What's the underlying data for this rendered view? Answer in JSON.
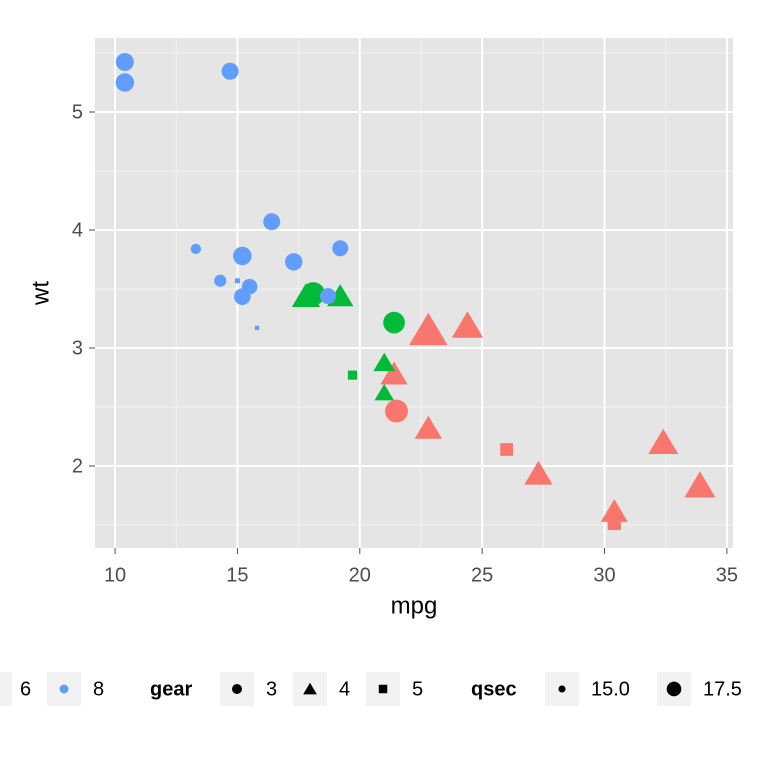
{
  "chart_data": {
    "type": "scatter",
    "x_label": "mpg",
    "y_label": "wt",
    "xlim": [
      9.18,
      35.25
    ],
    "ylim": [
      1.305,
      5.627
    ],
    "xticks": [
      10,
      15,
      20,
      25,
      30,
      35
    ],
    "yticks": [
      2,
      3,
      4,
      5
    ],
    "xminor": [
      12.5,
      17.5,
      22.5,
      27.5,
      32.5
    ],
    "yminor": [
      1.5,
      2.5,
      3.5,
      4.5,
      5.5
    ],
    "grid": true,
    "legend_position": "bottom",
    "series": [
      {
        "color": "#F8766D",
        "x": [
          22.8,
          24.4,
          22.8,
          32.4,
          30.4,
          33.9,
          21.5,
          27.3,
          26.0,
          30.4,
          21.4
        ],
        "values": [
          2.32,
          3.19,
          3.15,
          2.2,
          1.615,
          1.835,
          2.465,
          1.935,
          2.14,
          1.513,
          2.78
        ],
        "gear": [
          4,
          4,
          4,
          4,
          4,
          4,
          3,
          4,
          5,
          5,
          4
        ],
        "qsec": [
          18.61,
          20.0,
          22.9,
          19.47,
          18.52,
          19.9,
          20.01,
          18.9,
          16.7,
          16.9,
          18.6
        ]
      },
      {
        "name": "6",
        "color": "#00BA38",
        "x": [
          21.0,
          21.0,
          21.4,
          18.1,
          19.2,
          17.8,
          19.7
        ],
        "values": [
          2.62,
          2.875,
          3.215,
          3.46,
          3.44,
          3.44,
          2.77
        ],
        "gear": [
          4,
          4,
          3,
          3,
          4,
          4,
          5
        ],
        "qsec": [
          16.46,
          17.02,
          19.44,
          20.22,
          18.3,
          18.9,
          15.5
        ]
      },
      {
        "name": "8",
        "color": "#619CFF",
        "x": [
          18.7,
          14.3,
          16.4,
          17.3,
          15.2,
          10.4,
          10.4,
          14.7,
          15.5,
          15.2,
          13.3,
          19.2,
          15.8,
          15.0
        ],
        "values": [
          3.44,
          3.57,
          4.07,
          3.73,
          3.78,
          5.25,
          5.424,
          5.345,
          3.52,
          3.435,
          3.84,
          3.845,
          3.17,
          3.57
        ],
        "gear": [
          3,
          3,
          3,
          3,
          3,
          3,
          3,
          3,
          3,
          3,
          3,
          3,
          5,
          5
        ],
        "qsec": [
          17.02,
          15.84,
          17.4,
          17.6,
          18.0,
          17.98,
          17.82,
          17.42,
          16.87,
          17.3,
          15.41,
          17.05,
          14.5,
          14.6
        ]
      }
    ],
    "shape_legend": {
      "title": "gear",
      "values": [
        3,
        4,
        5
      ]
    },
    "size_legend": {
      "title": "qsec",
      "values": [
        {
          "value": 15,
          "label": "15.0"
        },
        {
          "value": 17.5,
          "label": "17.5"
        }
      ]
    }
  }
}
